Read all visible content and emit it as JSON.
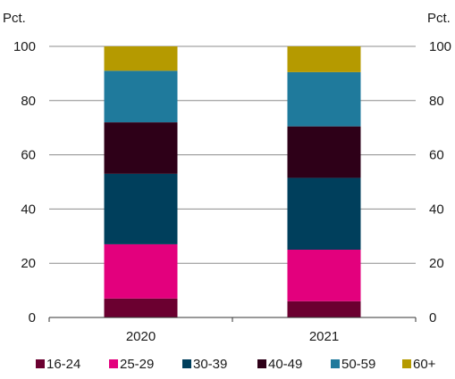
{
  "chart_data": {
    "type": "bar",
    "stacked": true,
    "categories": [
      "2020",
      "2021"
    ],
    "series": [
      {
        "name": "16-24",
        "color": "#6b0030",
        "values": [
          7,
          6
        ]
      },
      {
        "name": "25-29",
        "color": "#e3007d",
        "values": [
          20,
          19
        ]
      },
      {
        "name": "30-39",
        "color": "#003f5c",
        "values": [
          26,
          26.5
        ]
      },
      {
        "name": "40-49",
        "color": "#2e0018",
        "values": [
          19,
          19
        ]
      },
      {
        "name": "50-59",
        "color": "#1f7a9c",
        "values": [
          19,
          20
        ]
      },
      {
        "name": "60+",
        "color": "#b59a00",
        "values": [
          9,
          9.5
        ]
      }
    ],
    "ylim": [
      0,
      100
    ],
    "yticks": [
      "0",
      "20",
      "40",
      "60",
      "80",
      "100"
    ],
    "y_unit_left": "Pct.",
    "y_unit_right": "Pct.",
    "grid": true,
    "legend_position": "bottom"
  }
}
